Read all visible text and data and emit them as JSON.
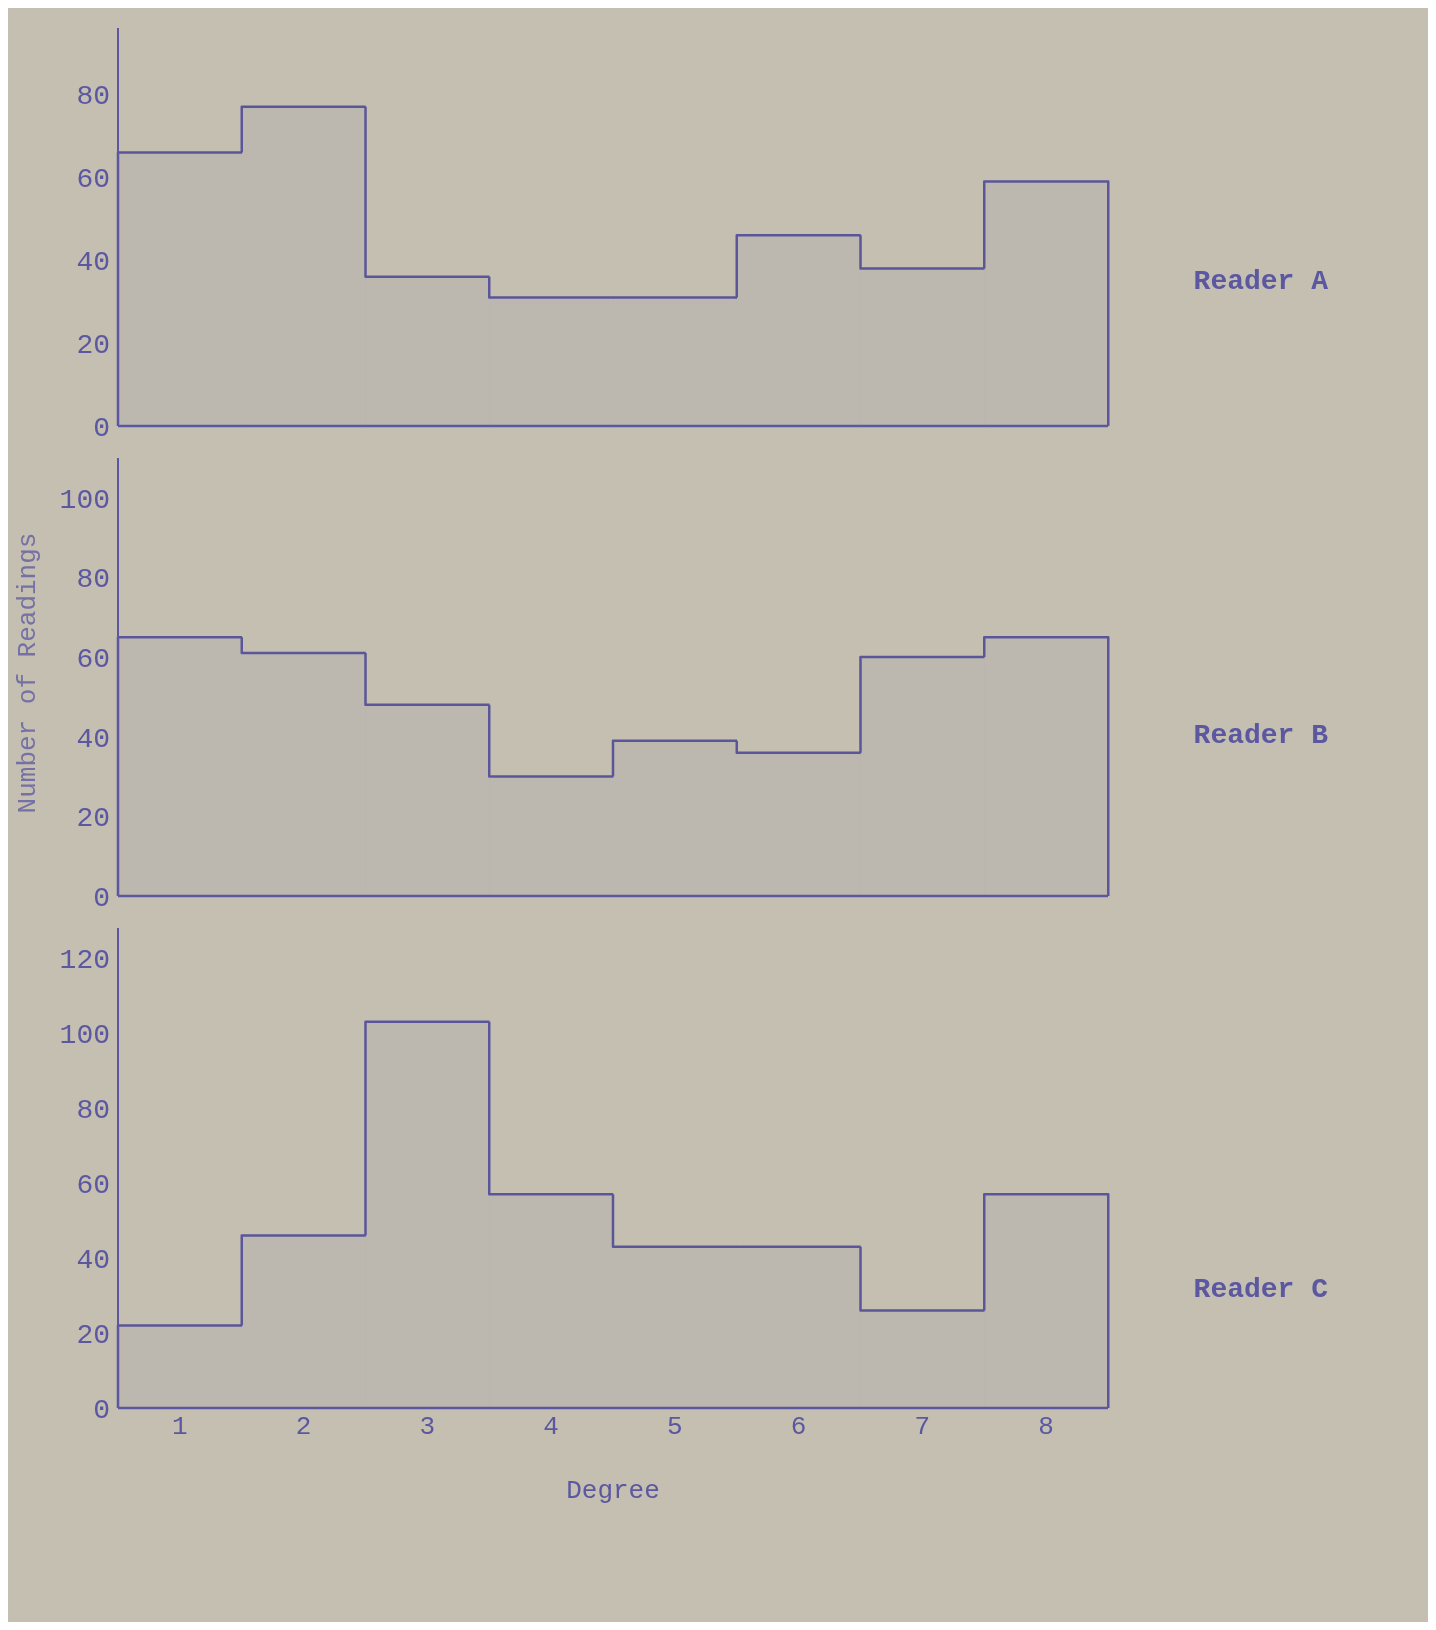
{
  "chart_data": [
    {
      "type": "bar",
      "categories": [
        null,
        null,
        null,
        null,
        null,
        null,
        null,
        null
      ],
      "values": [
        66,
        77,
        36,
        31,
        31,
        46,
        38,
        59
      ],
      "color": "#5a5699",
      "ylim": [
        0,
        96
      ],
      "yticks": [
        0,
        20,
        40,
        60,
        80
      ],
      "tick_labels": "y",
      "annotations": [
        "Reader A"
      ]
    },
    {
      "type": "bar",
      "categories": [
        null,
        null,
        null,
        null,
        null,
        null,
        null,
        null
      ],
      "values": [
        65,
        61,
        48,
        30,
        39,
        36,
        60,
        65
      ],
      "color": "#5a5699",
      "ylim": [
        0,
        110
      ],
      "yticks": [
        0,
        20,
        40,
        60,
        80,
        100
      ],
      "tick_labels": "y",
      "ylabel": "Number of Readings",
      "annotations": [
        "Reader B"
      ]
    },
    {
      "type": "bar",
      "categories": [
        "1",
        "2",
        "3",
        "4",
        "5",
        "6",
        "7",
        "8"
      ],
      "values": [
        22,
        46,
        103,
        57,
        43,
        43,
        26,
        57
      ],
      "color": "#5a5699",
      "ylim": [
        0,
        128
      ],
      "yticks": [
        0,
        20,
        40,
        60,
        80,
        100,
        120
      ],
      "xlabel": "Degree",
      "annotations": [
        "Reader C"
      ]
    }
  ]
}
